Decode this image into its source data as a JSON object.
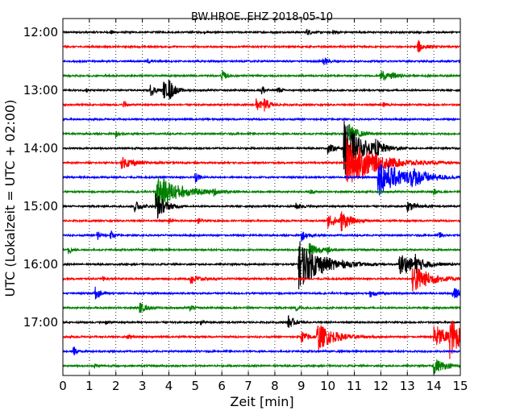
{
  "chart_data": {
    "type": "line",
    "title": "BW.HROE..EHZ 2018-05-10",
    "xlabel": "Zeit  [min]",
    "ylabel": "UTC (Lokalzeit = UTC + 02:00)",
    "xlim": [
      0,
      15
    ],
    "x_ticks": [
      "0",
      "1",
      "2",
      "3",
      "4",
      "5",
      "6",
      "7",
      "8",
      "9",
      "10",
      "11",
      "12",
      "13",
      "14",
      "15"
    ],
    "y_tick_labels": [
      "12:00",
      "13:00",
      "14:00",
      "15:00",
      "16:00",
      "17:00"
    ],
    "grid": true,
    "trace_colors": [
      "#000000",
      "#ff0000",
      "#0000ff",
      "#008000"
    ],
    "start_time": "12:00",
    "trace_interval_minutes": 15,
    "traces": [
      {
        "time": "12:00",
        "events": [
          [
            9.2,
            0.3,
            0.15
          ],
          [
            10.2,
            0.25,
            0.15
          ],
          [
            1.8,
            0.2,
            0.1
          ]
        ]
      },
      {
        "time": "12:15",
        "events": [
          [
            13.4,
            0.6,
            0.2
          ]
        ]
      },
      {
        "time": "12:30",
        "events": [
          [
            9.8,
            0.4,
            0.2
          ],
          [
            3.2,
            0.2,
            0.1
          ]
        ]
      },
      {
        "time": "12:45",
        "events": [
          [
            6.0,
            0.5,
            0.15
          ],
          [
            12.0,
            0.6,
            0.2
          ],
          [
            12.4,
            0.3,
            0.2
          ]
        ]
      },
      {
        "time": "13:00",
        "events": [
          [
            3.3,
            0.5,
            0.2
          ],
          [
            3.8,
            0.8,
            0.2
          ],
          [
            4.0,
            0.8,
            0.2
          ],
          [
            7.5,
            0.6,
            0.1
          ],
          [
            8.1,
            0.4,
            0.1
          ],
          [
            0.9,
            0.2,
            0.05
          ]
        ]
      },
      {
        "time": "13:15",
        "events": [
          [
            7.3,
            0.6,
            0.2
          ],
          [
            7.6,
            0.5,
            0.2
          ],
          [
            2.3,
            0.4,
            0.1
          ],
          [
            12.1,
            0.3,
            0.1
          ]
        ]
      },
      {
        "time": "13:30",
        "events": []
      },
      {
        "time": "13:45",
        "events": [
          [
            2.0,
            0.3,
            0.1
          ],
          [
            10.8,
            0.9,
            0.3
          ]
        ]
      },
      {
        "time": "14:00",
        "events": [
          [
            10.0,
            0.5,
            0.2
          ],
          [
            10.6,
            2.5,
            0.6
          ],
          [
            11.8,
            0.6,
            0.2
          ]
        ]
      },
      {
        "time": "14:15",
        "events": [
          [
            2.2,
            0.5,
            0.5
          ],
          [
            10.7,
            2.2,
            1.0
          ]
        ]
      },
      {
        "time": "14:30",
        "events": [
          [
            11.9,
            1.6,
            0.9
          ],
          [
            13.1,
            0.6,
            0.5
          ],
          [
            5.0,
            0.7,
            0.1
          ]
        ]
      },
      {
        "time": "14:45",
        "events": [
          [
            3.5,
            1.6,
            0.8
          ],
          [
            5.7,
            0.3,
            0.1
          ],
          [
            9.3,
            0.3,
            0.1
          ],
          [
            14.0,
            0.3,
            0.1
          ]
        ]
      },
      {
        "time": "15:00",
        "events": [
          [
            2.7,
            0.6,
            0.2
          ],
          [
            3.5,
            1.4,
            0.3
          ],
          [
            8.8,
            0.3,
            0.2
          ],
          [
            13.0,
            0.5,
            0.3
          ]
        ]
      },
      {
        "time": "15:15",
        "events": [
          [
            10.0,
            0.6,
            0.4
          ],
          [
            10.5,
            0.8,
            0.3
          ],
          [
            4.0,
            0.3,
            0.1
          ],
          [
            5.1,
            0.3,
            0.1
          ]
        ]
      },
      {
        "time": "15:30",
        "events": [
          [
            1.3,
            0.6,
            0.1
          ],
          [
            1.8,
            0.5,
            0.1
          ],
          [
            9.0,
            0.5,
            0.2
          ],
          [
            14.2,
            0.4,
            0.1
          ]
        ]
      },
      {
        "time": "15:45",
        "events": [
          [
            0.2,
            0.5,
            0.1
          ],
          [
            9.3,
            0.8,
            0.3
          ],
          [
            10.0,
            0.3,
            0.1
          ]
        ]
      },
      {
        "time": "16:00",
        "events": [
          [
            8.9,
            2.2,
            0.8
          ],
          [
            12.7,
            1.0,
            0.6
          ],
          [
            13.3,
            0.6,
            0.2
          ]
        ]
      },
      {
        "time": "16:15",
        "events": [
          [
            4.8,
            0.5,
            0.3
          ],
          [
            13.2,
            1.4,
            0.6
          ],
          [
            1.5,
            0.2,
            0.1
          ]
        ]
      },
      {
        "time": "16:30",
        "events": [
          [
            1.2,
            0.6,
            0.2
          ],
          [
            11.6,
            0.4,
            0.2
          ],
          [
            14.7,
            0.5,
            0.5
          ]
        ]
      },
      {
        "time": "16:45",
        "events": [
          [
            2.9,
            0.5,
            0.2
          ],
          [
            4.8,
            0.3,
            0.1
          ],
          [
            8.8,
            0.3,
            0.1
          ]
        ]
      },
      {
        "time": "17:00",
        "events": [
          [
            8.5,
            0.6,
            0.2
          ],
          [
            1.6,
            0.2,
            0.1
          ],
          [
            5.2,
            0.2,
            0.1
          ]
        ]
      },
      {
        "time": "17:15",
        "events": [
          [
            9.6,
            1.2,
            0.6
          ],
          [
            9.0,
            0.5,
            0.3
          ],
          [
            14.0,
            1.2,
            0.5
          ],
          [
            14.6,
            1.6,
            0.4
          ],
          [
            2.4,
            0.4,
            0.1
          ]
        ]
      },
      {
        "time": "17:30",
        "events": [
          [
            0.4,
            0.5,
            0.1
          ]
        ]
      },
      {
        "time": "17:45",
        "events": [
          [
            14.0,
            0.7,
            0.4
          ],
          [
            1.2,
            0.2,
            0.1
          ]
        ]
      }
    ]
  }
}
